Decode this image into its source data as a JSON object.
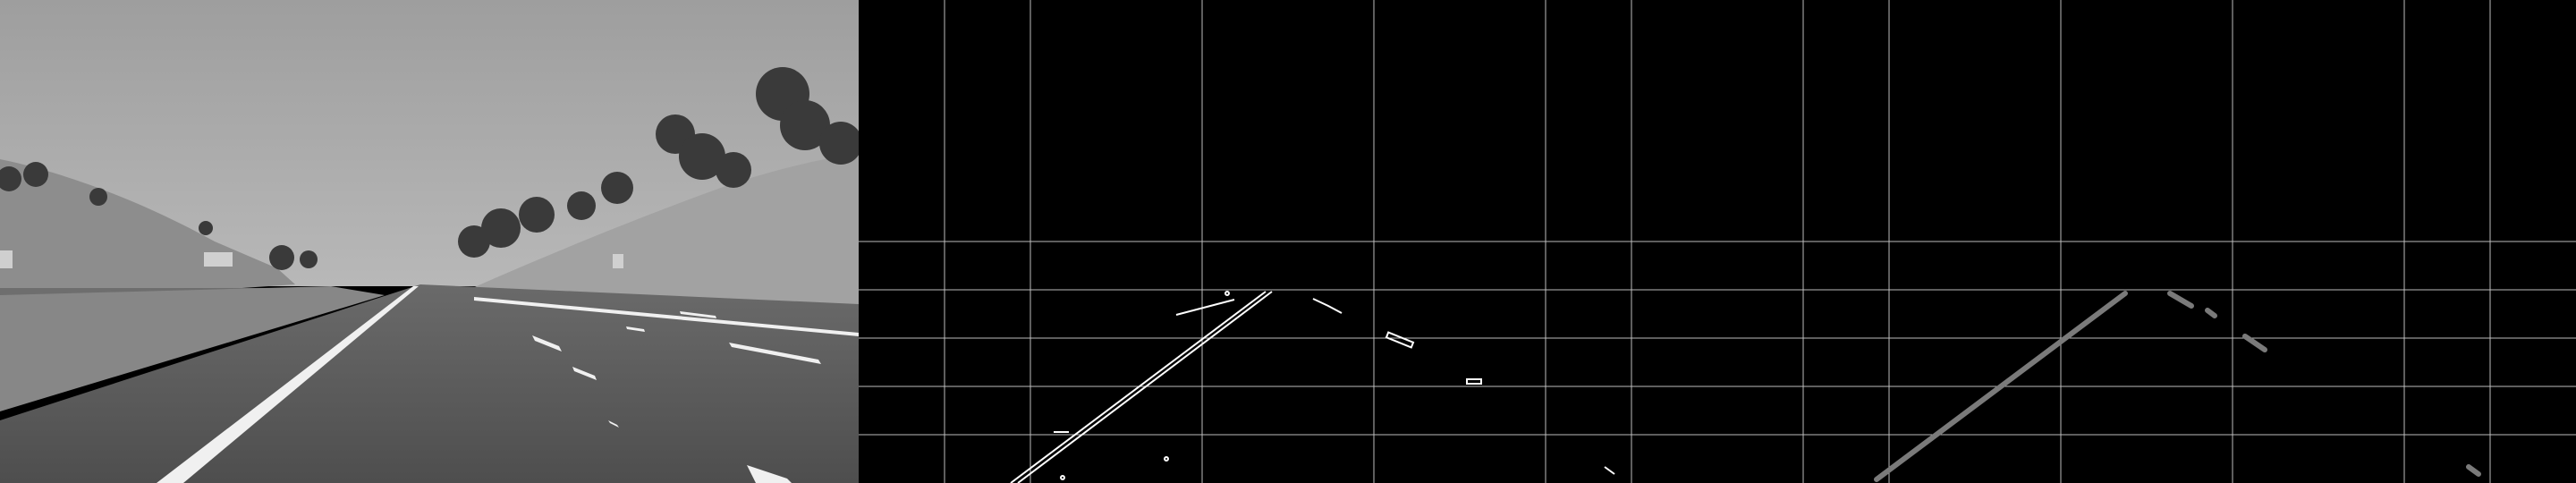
{
  "panels": [
    {
      "id": "grayscale",
      "kind": "photo"
    },
    {
      "id": "edges",
      "kind": "canny-edges"
    },
    {
      "id": "hough",
      "kind": "hough-lines"
    }
  ],
  "colors": {
    "sky": "#a9a9a9",
    "road": "#5a5a5a",
    "hillside": "#9c9c9c",
    "trees": "#3e3e3e",
    "lane_marking": "#f2f2f2",
    "edge_stroke": "#ffffff",
    "hough_stroke": "#7a7a7a",
    "grid": "#bdbdbd",
    "background": "#000000"
  }
}
